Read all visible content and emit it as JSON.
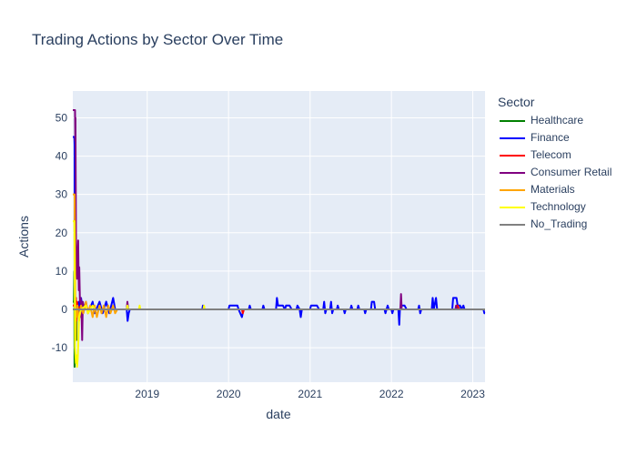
{
  "chart_data": {
    "type": "line",
    "title": "Trading Actions by Sector Over Time",
    "xlabel": "date",
    "ylabel": "Actions",
    "x_type": "date",
    "xlim": [
      "2018-02-01",
      "2023-02-25"
    ],
    "ylim": [
      -19,
      57
    ],
    "x_ticks": [
      "2019",
      "2020",
      "2021",
      "2022",
      "2023"
    ],
    "y_ticks": [
      -10,
      0,
      10,
      20,
      30,
      40,
      50
    ],
    "grid": true,
    "legend_title": "Sector",
    "legend_position": "right",
    "series": [
      {
        "name": "Healthcare",
        "color": "#008000",
        "points": [
          [
            "2018-02-01",
            2
          ],
          [
            "2018-02-06",
            2
          ],
          [
            "2018-02-08",
            10
          ],
          [
            "2018-02-09",
            -15
          ],
          [
            "2018-02-11",
            5
          ],
          [
            "2018-02-13",
            -5
          ],
          [
            "2018-02-15",
            3
          ],
          [
            "2018-02-17",
            -8
          ],
          [
            "2018-02-19",
            2
          ],
          [
            "2018-02-21",
            0
          ],
          [
            "2018-02-25",
            1
          ],
          [
            "2018-03-01",
            0
          ],
          [
            "2018-03-05",
            0
          ],
          [
            "2023-02-25",
            0
          ]
        ]
      },
      {
        "name": "Finance",
        "color": "#0000ff",
        "points": [
          [
            "2018-02-01",
            45
          ],
          [
            "2018-02-08",
            45
          ],
          [
            "2018-02-09",
            43
          ],
          [
            "2018-02-10",
            5
          ],
          [
            "2018-02-13",
            -5
          ],
          [
            "2018-02-15",
            3
          ],
          [
            "2018-02-17",
            -2
          ],
          [
            "2018-02-20",
            1
          ],
          [
            "2018-03-01",
            2
          ],
          [
            "2018-03-05",
            -2
          ],
          [
            "2018-03-10",
            3
          ],
          [
            "2018-03-20",
            -1
          ],
          [
            "2018-04-01",
            2
          ],
          [
            "2018-04-10",
            -1
          ],
          [
            "2018-05-01",
            2
          ],
          [
            "2018-05-10",
            -1
          ],
          [
            "2018-06-01",
            2
          ],
          [
            "2018-06-15",
            -1
          ],
          [
            "2018-07-01",
            2
          ],
          [
            "2018-07-15",
            -1
          ],
          [
            "2018-08-01",
            3
          ],
          [
            "2018-08-10",
            0
          ],
          [
            "2018-10-01",
            0
          ],
          [
            "2018-10-05",
            -3
          ],
          [
            "2018-10-10",
            -1
          ],
          [
            "2018-10-15",
            0
          ],
          [
            "2019-09-05",
            0
          ],
          [
            "2019-09-08",
            1
          ],
          [
            "2019-09-12",
            0
          ],
          [
            "2020-01-01",
            0
          ],
          [
            "2020-01-05",
            1
          ],
          [
            "2020-02-10",
            1
          ],
          [
            "2020-02-15",
            0
          ],
          [
            "2020-03-01",
            -2
          ],
          [
            "2020-03-08",
            0
          ],
          [
            "2020-04-01",
            0
          ],
          [
            "2020-04-05",
            1
          ],
          [
            "2020-04-10",
            0
          ],
          [
            "2020-06-01",
            0
          ],
          [
            "2020-06-05",
            1
          ],
          [
            "2020-06-10",
            0
          ],
          [
            "2020-08-01",
            0
          ],
          [
            "2020-08-05",
            3
          ],
          [
            "2020-08-10",
            1
          ],
          [
            "2020-09-01",
            1
          ],
          [
            "2020-09-10",
            0
          ],
          [
            "2020-09-15",
            1
          ],
          [
            "2020-10-01",
            1
          ],
          [
            "2020-10-10",
            0
          ],
          [
            "2020-11-01",
            0
          ],
          [
            "2020-11-05",
            1
          ],
          [
            "2020-11-15",
            0
          ],
          [
            "2020-11-20",
            -2
          ],
          [
            "2020-11-25",
            0
          ],
          [
            "2021-01-01",
            0
          ],
          [
            "2021-01-05",
            1
          ],
          [
            "2021-02-01",
            1
          ],
          [
            "2021-02-10",
            0
          ],
          [
            "2021-03-01",
            0
          ],
          [
            "2021-03-05",
            2
          ],
          [
            "2021-03-10",
            -1
          ],
          [
            "2021-03-15",
            0
          ],
          [
            "2021-04-01",
            0
          ],
          [
            "2021-04-05",
            2
          ],
          [
            "2021-04-10",
            -1
          ],
          [
            "2021-04-15",
            0
          ],
          [
            "2021-05-01",
            0
          ],
          [
            "2021-05-05",
            1
          ],
          [
            "2021-05-10",
            0
          ],
          [
            "2021-06-01",
            0
          ],
          [
            "2021-06-05",
            -1
          ],
          [
            "2021-06-10",
            0
          ],
          [
            "2021-07-01",
            0
          ],
          [
            "2021-07-05",
            1
          ],
          [
            "2021-07-10",
            0
          ],
          [
            "2021-08-01",
            0
          ],
          [
            "2021-08-05",
            1
          ],
          [
            "2021-08-10",
            0
          ],
          [
            "2021-09-01",
            0
          ],
          [
            "2021-09-05",
            -1
          ],
          [
            "2021-09-10",
            0
          ],
          [
            "2021-10-01",
            0
          ],
          [
            "2021-10-05",
            2
          ],
          [
            "2021-10-15",
            2
          ],
          [
            "2021-10-20",
            0
          ],
          [
            "2021-12-01",
            0
          ],
          [
            "2021-12-05",
            -1
          ],
          [
            "2021-12-10",
            0
          ],
          [
            "2021-12-15",
            1
          ],
          [
            "2021-12-20",
            0
          ],
          [
            "2022-01-01",
            0
          ],
          [
            "2022-01-05",
            -1
          ],
          [
            "2022-01-10",
            0
          ],
          [
            "2022-02-01",
            0
          ],
          [
            "2022-02-05",
            -4
          ],
          [
            "2022-02-08",
            0
          ],
          [
            "2022-02-15",
            1
          ],
          [
            "2022-03-01",
            1
          ],
          [
            "2022-03-10",
            0
          ],
          [
            "2022-05-01",
            0
          ],
          [
            "2022-05-05",
            1
          ],
          [
            "2022-05-10",
            -1
          ],
          [
            "2022-05-15",
            0
          ],
          [
            "2022-07-01",
            0
          ],
          [
            "2022-07-05",
            3
          ],
          [
            "2022-07-10",
            0
          ],
          [
            "2022-07-20",
            3
          ],
          [
            "2022-07-25",
            0
          ],
          [
            "2022-10-01",
            0
          ],
          [
            "2022-10-05",
            3
          ],
          [
            "2022-10-20",
            3
          ],
          [
            "2022-10-25",
            1
          ],
          [
            "2022-11-05",
            1
          ],
          [
            "2022-11-10",
            0
          ],
          [
            "2022-11-20",
            1
          ],
          [
            "2022-11-25",
            0
          ],
          [
            "2023-02-18",
            0
          ],
          [
            "2023-02-22",
            -1
          ],
          [
            "2023-02-25",
            -1
          ]
        ]
      },
      {
        "name": "Telecom",
        "color": "#ff0000",
        "points": [
          [
            "2018-02-01",
            1
          ],
          [
            "2018-02-12",
            1
          ],
          [
            "2018-02-13",
            -8
          ],
          [
            "2018-02-15",
            3
          ],
          [
            "2018-02-17",
            -3
          ],
          [
            "2018-02-20",
            2
          ],
          [
            "2018-02-25",
            0
          ],
          [
            "2018-03-10",
            1
          ],
          [
            "2018-03-20",
            0
          ],
          [
            "2018-04-01",
            1
          ],
          [
            "2018-04-10",
            0
          ],
          [
            "2020-03-01",
            0
          ],
          [
            "2020-03-05",
            -1
          ],
          [
            "2020-03-10",
            0
          ],
          [
            "2022-02-10",
            0
          ],
          [
            "2022-02-12",
            1
          ],
          [
            "2022-02-15",
            0
          ],
          [
            "2022-10-20",
            0
          ],
          [
            "2022-10-25",
            1
          ],
          [
            "2022-11-01",
            0
          ],
          [
            "2023-02-25",
            0
          ]
        ]
      },
      {
        "name": "Consumer Retail",
        "color": "#800080",
        "points": [
          [
            "2018-02-01",
            52
          ],
          [
            "2018-02-11",
            52
          ],
          [
            "2018-02-12",
            44
          ],
          [
            "2018-02-13",
            50
          ],
          [
            "2018-02-14",
            35
          ],
          [
            "2018-02-16",
            10
          ],
          [
            "2018-02-18",
            12
          ],
          [
            "2018-02-20",
            8
          ],
          [
            "2018-02-22",
            14
          ],
          [
            "2018-02-25",
            18
          ],
          [
            "2018-02-28",
            5
          ],
          [
            "2018-03-02",
            11
          ],
          [
            "2018-03-05",
            2
          ],
          [
            "2018-03-08",
            3
          ],
          [
            "2018-03-12",
            0
          ],
          [
            "2018-03-15",
            -8
          ],
          [
            "2018-03-18",
            2
          ],
          [
            "2018-03-25",
            0
          ],
          [
            "2018-10-01",
            0
          ],
          [
            "2018-10-04",
            2
          ],
          [
            "2018-10-08",
            0
          ],
          [
            "2022-02-10",
            0
          ],
          [
            "2022-02-13",
            4
          ],
          [
            "2022-02-16",
            0
          ],
          [
            "2022-10-15",
            0
          ],
          [
            "2022-10-18",
            1
          ],
          [
            "2022-10-22",
            0
          ],
          [
            "2023-02-25",
            0
          ]
        ]
      },
      {
        "name": "Materials",
        "color": "#ffa500",
        "points": [
          [
            "2018-02-01",
            30
          ],
          [
            "2018-02-09",
            30
          ],
          [
            "2018-02-10",
            22
          ],
          [
            "2018-02-12",
            5
          ],
          [
            "2018-02-14",
            -8
          ],
          [
            "2018-02-16",
            0
          ],
          [
            "2018-02-18",
            -2
          ],
          [
            "2018-02-22",
            1
          ],
          [
            "2018-03-01",
            -3
          ],
          [
            "2018-03-10",
            1
          ],
          [
            "2018-03-20",
            -1
          ],
          [
            "2018-04-01",
            2
          ],
          [
            "2018-04-10",
            -1
          ],
          [
            "2018-04-20",
            1
          ],
          [
            "2018-05-01",
            -2
          ],
          [
            "2018-05-10",
            1
          ],
          [
            "2018-05-20",
            -2
          ],
          [
            "2018-06-01",
            1
          ],
          [
            "2018-06-10",
            -1
          ],
          [
            "2018-06-20",
            1
          ],
          [
            "2018-07-01",
            -2
          ],
          [
            "2018-07-10",
            1
          ],
          [
            "2018-07-20",
            -1
          ],
          [
            "2018-08-01",
            1
          ],
          [
            "2018-08-10",
            -1
          ],
          [
            "2018-08-20",
            0
          ],
          [
            "2023-02-25",
            0
          ]
        ]
      },
      {
        "name": "Technology",
        "color": "#ffff00",
        "points": [
          [
            "2018-02-01",
            23
          ],
          [
            "2018-02-08",
            23
          ],
          [
            "2018-02-09",
            15
          ],
          [
            "2018-02-11",
            -10
          ],
          [
            "2018-02-13",
            -12
          ],
          [
            "2018-02-15",
            -14
          ],
          [
            "2018-02-18",
            -12
          ],
          [
            "2018-02-20",
            -15
          ],
          [
            "2018-02-23",
            -13
          ],
          [
            "2018-02-26",
            -8
          ],
          [
            "2018-03-01",
            -2
          ],
          [
            "2018-03-10",
            0
          ],
          [
            "2018-04-01",
            1
          ],
          [
            "2018-04-10",
            -1
          ],
          [
            "2018-05-01",
            1
          ],
          [
            "2018-05-10",
            0
          ],
          [
            "2018-10-01",
            0
          ],
          [
            "2018-10-04",
            1
          ],
          [
            "2018-10-08",
            0
          ],
          [
            "2018-11-25",
            0
          ],
          [
            "2018-11-28",
            1
          ],
          [
            "2018-12-01",
            0
          ],
          [
            "2019-09-10",
            0
          ],
          [
            "2019-09-13",
            1
          ],
          [
            "2019-09-16",
            0
          ],
          [
            "2023-02-25",
            0
          ]
        ]
      },
      {
        "name": "No_Trading",
        "color": "#808080",
        "points": [
          [
            "2018-02-01",
            0
          ],
          [
            "2023-02-25",
            0
          ]
        ]
      }
    ]
  }
}
